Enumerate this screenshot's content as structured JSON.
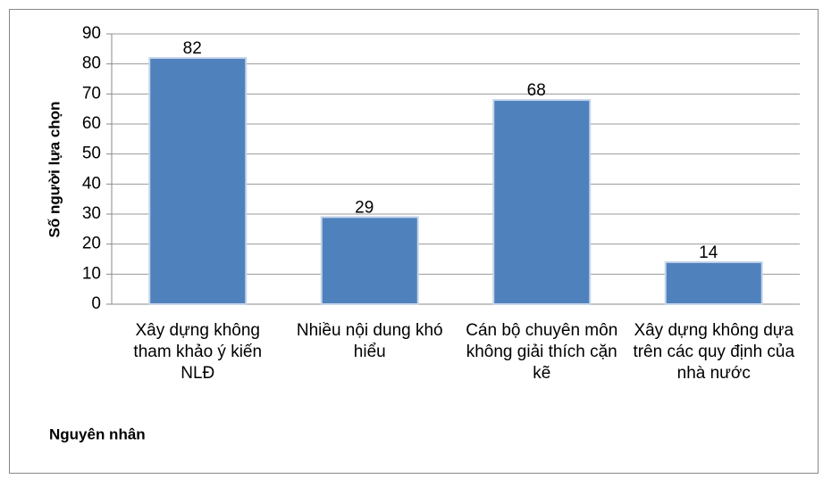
{
  "chart_data": {
    "type": "bar",
    "y_axis_label": "Số người lựa chọn",
    "x_axis_label": "Nguyên nhân",
    "categories": [
      "Xây dựng không tham khảo ý kiến NLĐ",
      "Nhiều nội dung khó hiểu",
      "Cán bộ chuyên môn không giải thích cặn kẽ",
      "Xây dựng không dựa trên các quy định của nhà nước"
    ],
    "values": [
      82,
      29,
      68,
      14
    ],
    "color": "#4f81bd",
    "ylim": [
      0,
      90
    ],
    "yticks": [
      0,
      10,
      20,
      30,
      40,
      50,
      60,
      70,
      80,
      90
    ],
    "grid": true
  }
}
